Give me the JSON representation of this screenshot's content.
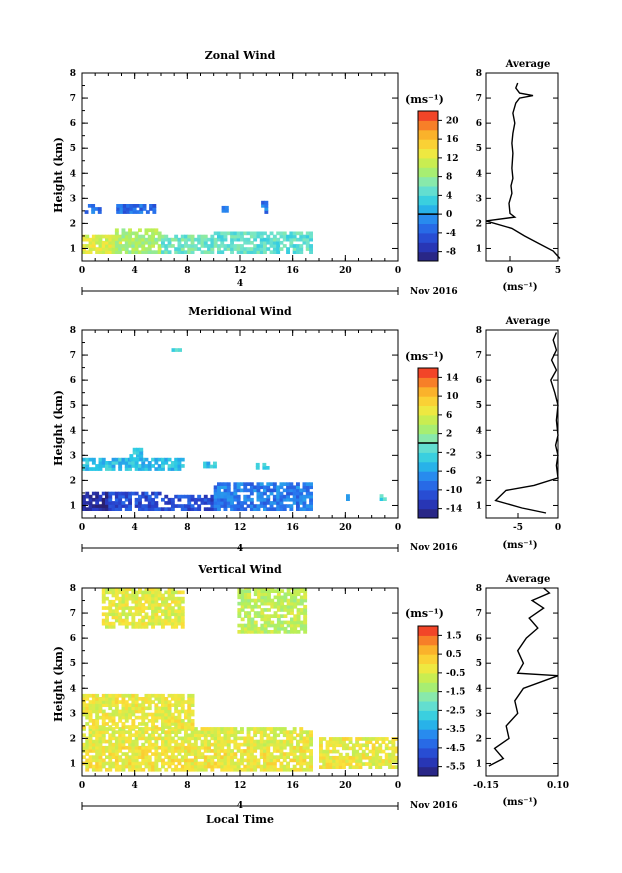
{
  "chart_data": [
    {
      "type": "heatmap",
      "title": "Zonal Wind",
      "xlabel": "",
      "ylabel": "Height (km)",
      "x_ticks": [
        "0",
        "4",
        "8",
        "12",
        "16",
        "20",
        "0"
      ],
      "day_label": "4",
      "month_label": "Nov 2016",
      "xlim": [
        0,
        24
      ],
      "ylim": [
        0.5,
        8
      ],
      "y_ticks": [
        1,
        2,
        3,
        4,
        5,
        6,
        7,
        8
      ],
      "colorbar": {
        "unit": "(ms⁻¹)",
        "min": -10,
        "max": 22,
        "ticks": [
          20,
          16,
          12,
          8,
          4,
          0,
          -4,
          -8
        ],
        "zero_line": 0
      },
      "clusters": [
        {
          "t0": 0.0,
          "t1": 3.0,
          "h0": 0.8,
          "h1": 1.45,
          "v": 12
        },
        {
          "t0": 2.5,
          "t1": 6.0,
          "h0": 0.8,
          "h1": 1.7,
          "v": 9
        },
        {
          "t0": 6.0,
          "t1": 10.0,
          "h0": 0.8,
          "h1": 1.45,
          "v": 6
        },
        {
          "t0": 10.0,
          "t1": 17.5,
          "h0": 0.8,
          "h1": 1.6,
          "v": 5
        },
        {
          "t0": 0.2,
          "t1": 1.3,
          "h0": 2.4,
          "h1": 2.75,
          "v": -2
        },
        {
          "t0": 2.6,
          "t1": 5.6,
          "h0": 2.4,
          "h1": 2.75,
          "v": -3
        },
        {
          "t0": 10.6,
          "t1": 10.9,
          "h0": 2.45,
          "h1": 2.7,
          "v": -2
        },
        {
          "t0": 13.6,
          "t1": 13.9,
          "h0": 2.4,
          "h1": 2.8,
          "v": -2
        }
      ],
      "average": {
        "title": "Average",
        "xlabel": "(ms⁻¹)",
        "x_ticks": [
          "0",
          "5"
        ],
        "xlim": [
          -2.5,
          5
        ],
        "ylim": [
          0.5,
          8
        ],
        "profile": [
          [
            5.2,
            0.6
          ],
          [
            4.5,
            0.9
          ],
          [
            3.0,
            1.2
          ],
          [
            1.5,
            1.5
          ],
          [
            0.2,
            1.8
          ],
          [
            -2.5,
            2.1
          ],
          [
            0.5,
            2.25
          ],
          [
            0.0,
            2.4
          ],
          [
            -0.1,
            2.8
          ],
          [
            0.2,
            3.2
          ],
          [
            0.1,
            3.5
          ],
          [
            0.3,
            3.8
          ],
          [
            0.2,
            4.2
          ],
          [
            0.3,
            4.8
          ],
          [
            0.2,
            5.2
          ],
          [
            0.3,
            5.6
          ],
          [
            0.5,
            6.0
          ],
          [
            0.3,
            6.4
          ],
          [
            0.6,
            6.8
          ],
          [
            1.0,
            7.0
          ],
          [
            2.4,
            7.1
          ],
          [
            1.0,
            7.2
          ],
          [
            0.6,
            7.4
          ],
          [
            0.8,
            7.6
          ]
        ]
      }
    },
    {
      "type": "heatmap",
      "title": "Meridional Wind",
      "xlabel": "",
      "ylabel": "Height (km)",
      "x_ticks": [
        "0",
        "4",
        "8",
        "12",
        "16",
        "20",
        "0"
      ],
      "day_label": "4",
      "month_label": "Nov 2016",
      "xlim": [
        0,
        24
      ],
      "ylim": [
        0.5,
        8
      ],
      "y_ticks": [
        1,
        2,
        3,
        4,
        5,
        6,
        7,
        8
      ],
      "colorbar": {
        "unit": "(ms⁻¹)",
        "min": -16,
        "max": 16,
        "ticks": [
          14,
          10,
          6,
          2,
          -2,
          -6,
          -10,
          -14
        ],
        "zero_line": 0
      },
      "clusters": [
        {
          "t0": 0.0,
          "t1": 2.0,
          "h0": 0.8,
          "h1": 1.5,
          "v": -14
        },
        {
          "t0": 2.0,
          "t1": 6.0,
          "h0": 0.8,
          "h1": 1.55,
          "v": -11
        },
        {
          "t0": 6.0,
          "t1": 10.0,
          "h0": 0.8,
          "h1": 1.35,
          "v": -11
        },
        {
          "t0": 10.0,
          "t1": 17.5,
          "h0": 0.8,
          "h1": 1.85,
          "v": -8
        },
        {
          "t0": 0.0,
          "t1": 7.6,
          "h0": 2.4,
          "h1": 2.8,
          "v": -4
        },
        {
          "t0": 3.6,
          "t1": 4.6,
          "h0": 2.8,
          "h1": 3.2,
          "v": -4
        },
        {
          "t0": 9.2,
          "t1": 10.0,
          "h0": 2.5,
          "h1": 2.75,
          "v": -4
        },
        {
          "t0": 13.2,
          "t1": 14.2,
          "h0": 2.45,
          "h1": 2.7,
          "v": -4
        },
        {
          "t0": 6.8,
          "t1": 7.4,
          "h0": 7.15,
          "h1": 7.25,
          "v": -2
        },
        {
          "t0": 19.8,
          "t1": 20.1,
          "h0": 1.2,
          "h1": 1.4,
          "v": -6
        },
        {
          "t0": 22.6,
          "t1": 22.9,
          "h0": 1.2,
          "h1": 1.35,
          "v": -2
        }
      ],
      "average": {
        "title": "Average",
        "xlabel": "(ms⁻¹)",
        "x_ticks": [
          "-5",
          "0"
        ],
        "xlim": [
          -9,
          0
        ],
        "ylim": [
          0.5,
          8
        ],
        "profile": [
          [
            -1.5,
            0.7
          ],
          [
            -4.5,
            0.9
          ],
          [
            -7.8,
            1.2
          ],
          [
            -6.5,
            1.6
          ],
          [
            -3.0,
            1.8
          ],
          [
            0.0,
            2.1
          ],
          [
            -0.2,
            2.6
          ],
          [
            0.0,
            3.0
          ],
          [
            -0.3,
            3.4
          ],
          [
            0.0,
            3.8
          ],
          [
            -0.2,
            4.4
          ],
          [
            0.0,
            5.0
          ],
          [
            -0.4,
            5.5
          ],
          [
            -0.9,
            6.0
          ],
          [
            -0.2,
            6.4
          ],
          [
            -0.8,
            6.8
          ],
          [
            -0.2,
            7.2
          ],
          [
            -0.6,
            7.6
          ],
          [
            -0.2,
            7.9
          ]
        ]
      }
    },
    {
      "type": "heatmap",
      "title": "Vertical Wind",
      "xlabel": "Local Time",
      "ylabel": "Height (km)",
      "x_ticks": [
        "0",
        "4",
        "8",
        "12",
        "16",
        "20",
        "0"
      ],
      "day_label": "4",
      "month_label": "Nov 2016",
      "xlim": [
        0,
        24
      ],
      "ylim": [
        0.5,
        8
      ],
      "y_ticks": [
        1,
        2,
        3,
        4,
        5,
        6,
        7,
        8
      ],
      "colorbar": {
        "unit": "(ms⁻¹)",
        "min": -6,
        "max": 2,
        "ticks": [
          1.5,
          0.5,
          -0.5,
          -1.5,
          -2.5,
          -3.5,
          -4.5,
          -5.5
        ]
      },
      "clusters": [
        {
          "t0": 0.0,
          "t1": 17.5,
          "h0": 0.7,
          "h1": 1.7,
          "v": -0.2
        },
        {
          "t0": 0.0,
          "t1": 17.5,
          "h0": 1.7,
          "h1": 2.4,
          "v": -0.4
        },
        {
          "t0": 0.0,
          "t1": 8.5,
          "h0": 2.4,
          "h1": 3.7,
          "v": -0.3
        },
        {
          "t0": 1.5,
          "t1": 7.6,
          "h0": 6.4,
          "h1": 8.0,
          "v": -0.4
        },
        {
          "t0": 11.8,
          "t1": 17.0,
          "h0": 6.2,
          "h1": 8.0,
          "v": -0.9
        },
        {
          "t0": 18.0,
          "t1": 24.0,
          "h0": 0.8,
          "h1": 2.0,
          "v": -0.3
        }
      ],
      "average": {
        "title": "Average",
        "xlabel": "(ms⁻¹)",
        "x_ticks": [
          "-0.15",
          "0.10"
        ],
        "xlim": [
          -0.15,
          0.1
        ],
        "ylim": [
          0.5,
          8
        ],
        "profile": [
          [
            -0.14,
            0.9
          ],
          [
            -0.09,
            1.2
          ],
          [
            -0.12,
            1.6
          ],
          [
            -0.07,
            2.0
          ],
          [
            -0.08,
            2.5
          ],
          [
            -0.04,
            3.0
          ],
          [
            -0.05,
            3.5
          ],
          [
            -0.02,
            4.0
          ],
          [
            0.1,
            4.5
          ],
          [
            -0.04,
            4.6
          ],
          [
            -0.02,
            5.0
          ],
          [
            -0.04,
            5.5
          ],
          [
            -0.01,
            6.0
          ],
          [
            0.03,
            6.4
          ],
          [
            0.0,
            6.8
          ],
          [
            0.05,
            7.2
          ],
          [
            0.01,
            7.5
          ],
          [
            0.07,
            7.8
          ],
          [
            0.05,
            8.0
          ]
        ]
      }
    }
  ]
}
